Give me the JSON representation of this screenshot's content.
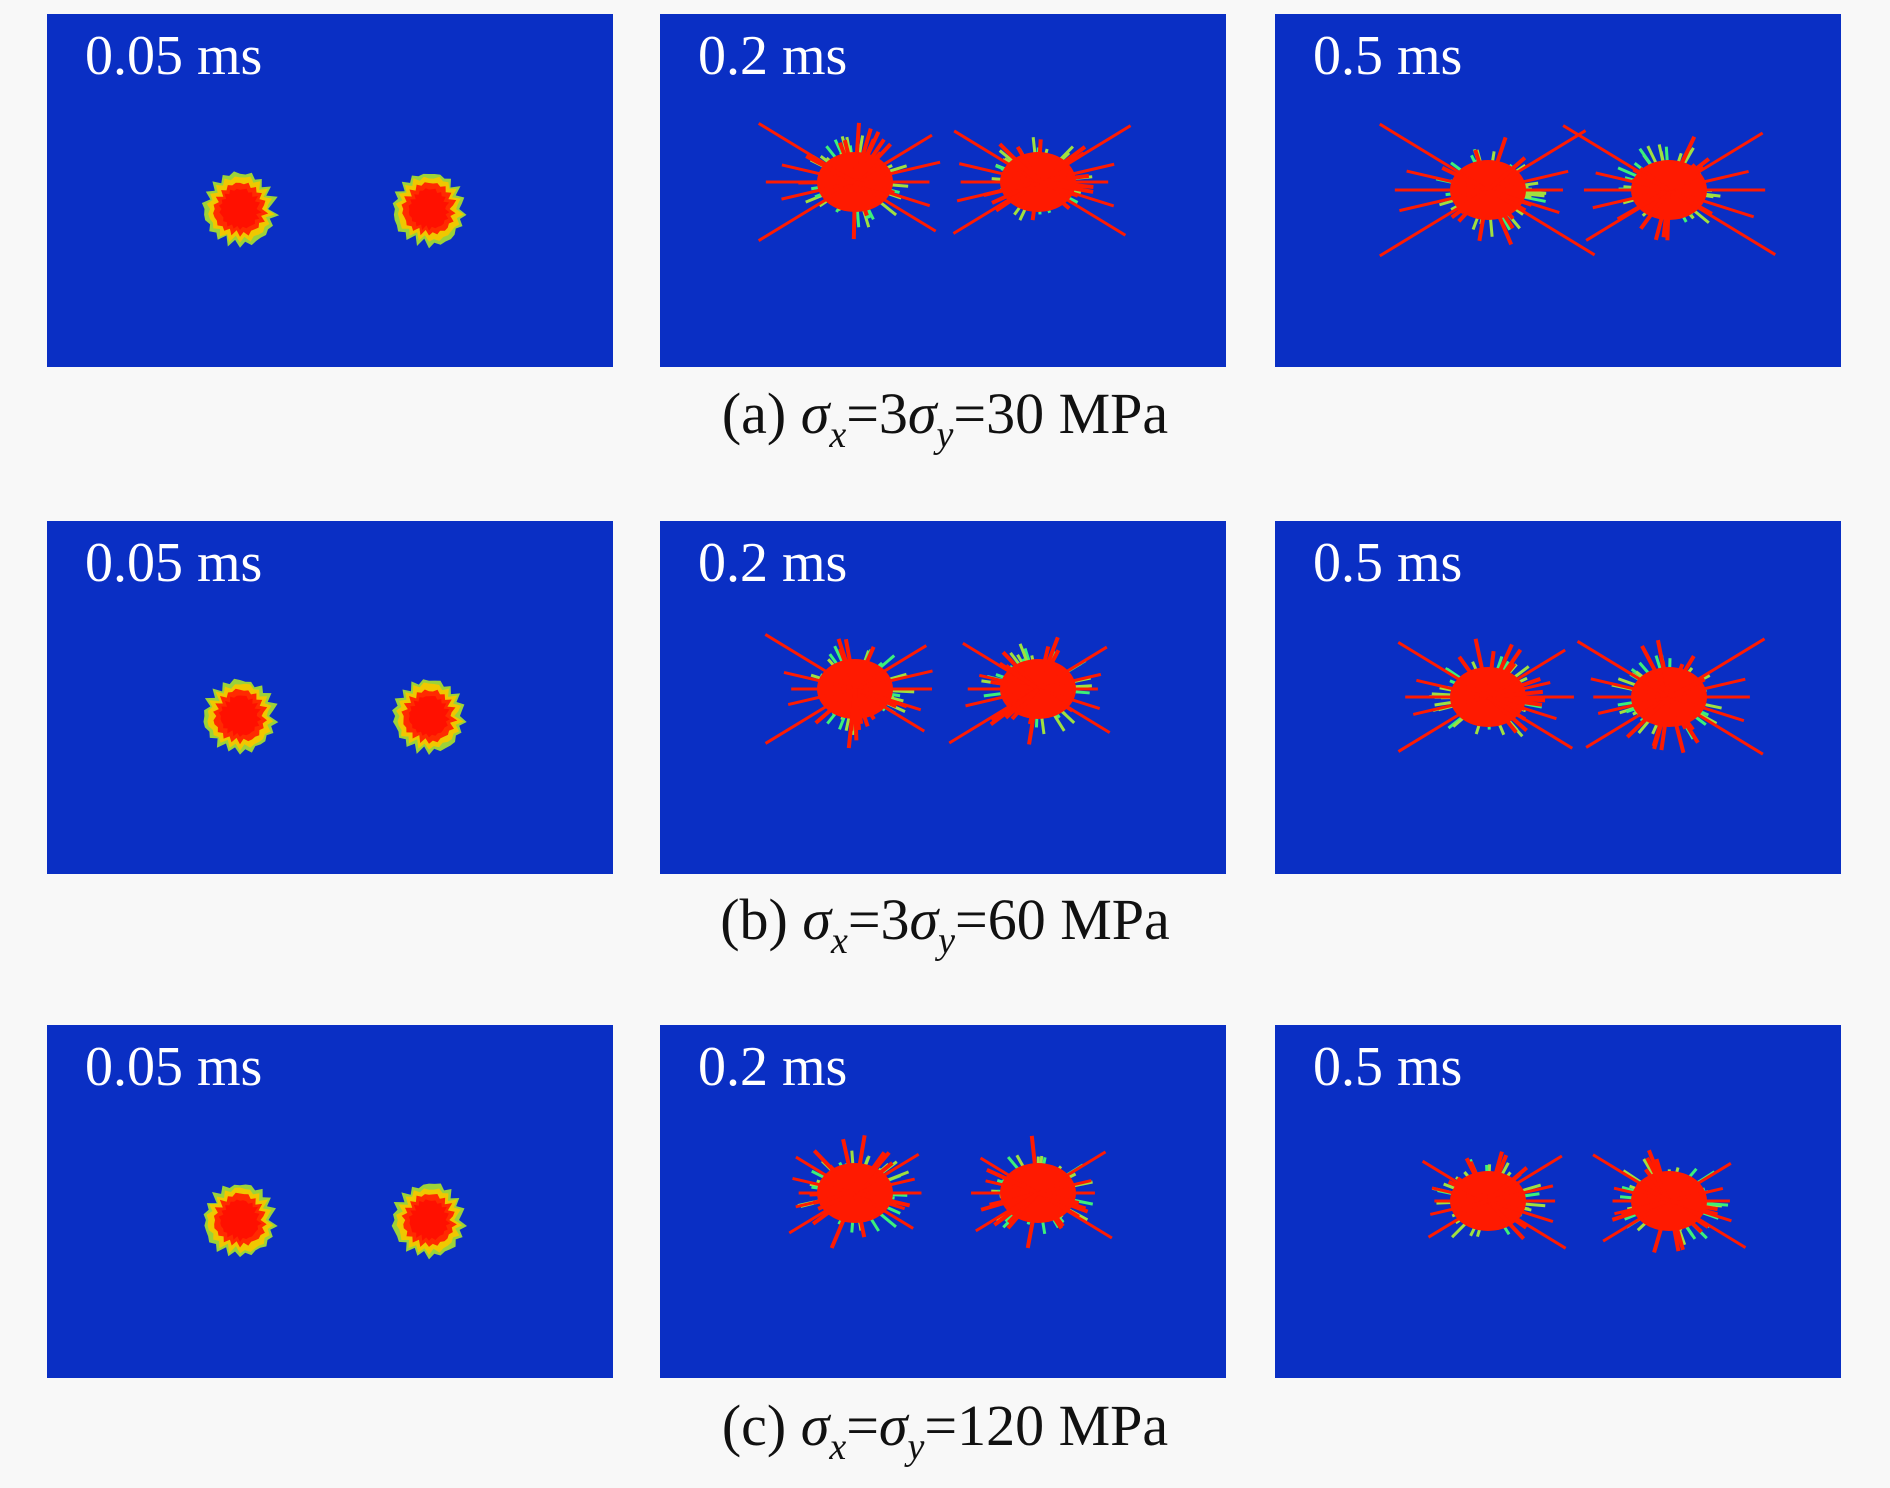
{
  "rows": [
    {
      "times": [
        "0.05 ms",
        "0.2 ms",
        "0.5 ms"
      ],
      "caption": {
        "label": "(a)",
        "formula": [
          "σ",
          "x",
          "=3",
          "σ",
          "y",
          "=30 MPa"
        ]
      }
    },
    {
      "times": [
        "0.05 ms",
        "0.2 ms",
        "0.5 ms"
      ],
      "caption": {
        "label": "(b)",
        "formula": [
          "σ",
          "x",
          "=3",
          "σ",
          "y",
          "=60 MPa"
        ]
      }
    },
    {
      "times": [
        "0.05 ms",
        "0.2 ms",
        "0.5 ms"
      ],
      "caption": {
        "label": "(c)",
        "formula": [
          "σ",
          "x",
          "=",
          "σ",
          "y",
          "=120 MPa"
        ]
      }
    }
  ]
}
